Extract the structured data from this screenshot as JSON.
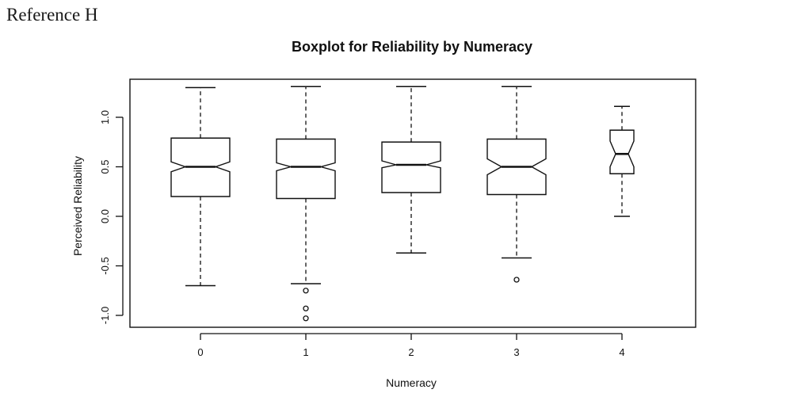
{
  "reference_label": "Reference H",
  "chart_data": {
    "type": "boxplot",
    "title": "Boxplot for Reliability by Numeracy",
    "xlabel": "Numeracy",
    "ylabel": "Perceived Reliability",
    "categories": [
      "0",
      "1",
      "2",
      "3",
      "4"
    ],
    "yticks": [
      "-1.0",
      "-0.5",
      "0.0",
      "0.5",
      "1.0"
    ],
    "ylim": [
      -1.1,
      1.38
    ],
    "notched": true,
    "boxes": [
      {
        "category": "0",
        "whisker_low": -0.7,
        "q1": 0.2,
        "median": 0.5,
        "q3": 0.79,
        "whisker_high": 1.3,
        "notch_low": 0.45,
        "notch_high": 0.55,
        "outliers": []
      },
      {
        "category": "1",
        "whisker_low": -0.68,
        "q1": 0.18,
        "median": 0.5,
        "q3": 0.78,
        "whisker_high": 1.31,
        "notch_low": 0.46,
        "notch_high": 0.54,
        "outliers": [
          -0.75,
          -0.93,
          -1.03
        ]
      },
      {
        "category": "2",
        "whisker_low": -0.37,
        "q1": 0.24,
        "median": 0.52,
        "q3": 0.75,
        "whisker_high": 1.31,
        "notch_low": 0.49,
        "notch_high": 0.56,
        "outliers": []
      },
      {
        "category": "3",
        "whisker_low": -0.42,
        "q1": 0.22,
        "median": 0.5,
        "q3": 0.78,
        "whisker_high": 1.31,
        "notch_low": 0.42,
        "notch_high": 0.58,
        "outliers": [
          -0.64
        ]
      },
      {
        "category": "4",
        "whisker_low": 0.0,
        "q1": 0.43,
        "median": 0.63,
        "q3": 0.87,
        "whisker_high": 1.11,
        "notch_low": 0.5,
        "notch_high": 0.76,
        "outliers": []
      }
    ]
  }
}
